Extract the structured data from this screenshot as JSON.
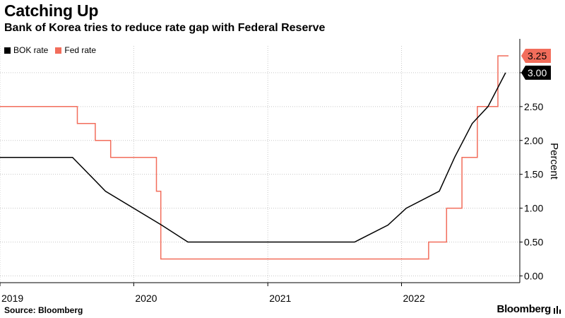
{
  "header": {
    "title": "Catching Up",
    "subtitle": "Bank of Korea tries to reduce rate gap with Federal Reserve"
  },
  "footer": {
    "source": "Source: Bloomberg",
    "brand": "Bloomberg"
  },
  "chart_data": {
    "type": "line",
    "title": "Catching Up",
    "subtitle": "Bank of Korea tries to reduce rate gap with Federal Reserve",
    "xlabel": "",
    "ylabel": "Percent",
    "ylim": [
      -0.1,
      3.5
    ],
    "xlim": [
      "2019-01-01",
      "2022-10-20"
    ],
    "grid": true,
    "y_axis_side": "right",
    "legend_placement": "top-left",
    "x_ticks": [
      "2019",
      "2020",
      "2021",
      "2022"
    ],
    "y_ticks": [
      "0.00",
      "0.50",
      "1.00",
      "1.50",
      "2.00",
      "2.50",
      "3.00"
    ],
    "series": [
      {
        "name": "BOK rate",
        "color": "#000000",
        "end_label": "3.00",
        "points": [
          [
            "2019-01-01",
            1.75
          ],
          [
            "2019-07-18",
            1.75
          ],
          [
            "2019-10-16",
            1.25
          ],
          [
            "2020-03-17",
            0.75
          ],
          [
            "2020-05-28",
            0.5
          ],
          [
            "2021-08-26",
            0.5
          ],
          [
            "2021-11-25",
            0.75
          ],
          [
            "2022-01-14",
            1.0
          ],
          [
            "2022-04-14",
            1.25
          ],
          [
            "2022-05-26",
            1.75
          ],
          [
            "2022-07-13",
            2.25
          ],
          [
            "2022-08-25",
            2.5
          ],
          [
            "2022-10-12",
            3.0
          ]
        ]
      },
      {
        "name": "Fed rate",
        "color": "#f26d5b",
        "end_label": "3.25",
        "points": [
          [
            "2019-01-01",
            2.5
          ],
          [
            "2019-07-31",
            2.5
          ],
          [
            "2019-07-31",
            2.25
          ],
          [
            "2019-09-18",
            2.25
          ],
          [
            "2019-09-18",
            2.0
          ],
          [
            "2019-10-30",
            2.0
          ],
          [
            "2019-10-30",
            1.75
          ],
          [
            "2020-03-03",
            1.75
          ],
          [
            "2020-03-03",
            1.25
          ],
          [
            "2020-03-15",
            1.25
          ],
          [
            "2020-03-15",
            0.25
          ],
          [
            "2022-03-16",
            0.25
          ],
          [
            "2022-03-16",
            0.5
          ],
          [
            "2022-05-04",
            0.5
          ],
          [
            "2022-05-04",
            1.0
          ],
          [
            "2022-06-15",
            1.0
          ],
          [
            "2022-06-15",
            1.75
          ],
          [
            "2022-07-27",
            1.75
          ],
          [
            "2022-07-27",
            2.5
          ],
          [
            "2022-09-21",
            2.5
          ],
          [
            "2022-09-21",
            3.25
          ],
          [
            "2022-10-20",
            3.25
          ]
        ]
      }
    ]
  }
}
